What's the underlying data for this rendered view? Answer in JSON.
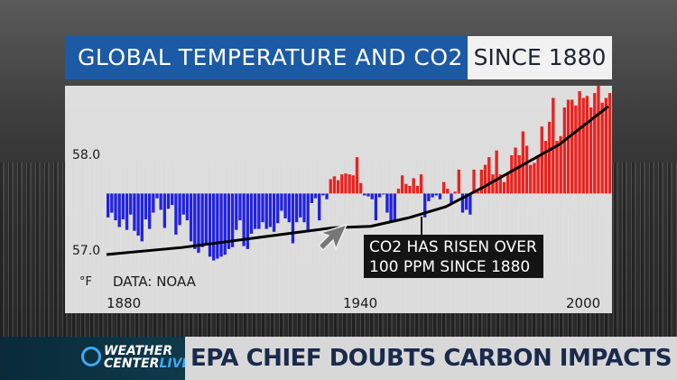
{
  "header": {
    "title": "GLOBAL TEMPERATURE AND CO2",
    "since": "SINCE 1880"
  },
  "ticker": {
    "logo_line1": "WEATHER",
    "logo_line2": "CENTER",
    "logo_live": "LIVE",
    "headline": "EPA CHIEF DOUBTS CARBON IMPACTS"
  },
  "colors": {
    "title_bar": "#1c5aa5",
    "warm": "#e8231f",
    "cool": "#2222dd",
    "co2_line": "#000000",
    "headline_text": "#1a2a4c"
  },
  "chart_data": {
    "type": "bar",
    "unit_label": "°F",
    "source_label": "DATA: NOAA",
    "y_ticks": [
      "58.0",
      "57.0"
    ],
    "x_ticks": [
      "1880",
      "1940",
      "2000"
    ],
    "ylim": [
      56.95,
      58.7
    ],
    "baseline_f": 57.6,
    "x_start_year": 1880,
    "x_end_year": 2013,
    "temperature_anomaly_f": [
      -0.25,
      -0.2,
      -0.28,
      -0.35,
      -0.27,
      -0.38,
      -0.22,
      -0.39,
      -0.44,
      -0.5,
      -0.27,
      -0.37,
      -0.2,
      -0.05,
      -0.17,
      -0.36,
      -0.16,
      -0.12,
      -0.43,
      -0.33,
      -0.22,
      -0.28,
      -0.5,
      -0.58,
      -0.62,
      -0.56,
      -0.52,
      -0.66,
      -0.7,
      -0.68,
      -0.66,
      -0.64,
      -0.58,
      -0.56,
      -0.38,
      -0.28,
      -0.55,
      -0.58,
      -0.42,
      -0.37,
      -0.37,
      -0.3,
      -0.37,
      -0.35,
      -0.4,
      -0.31,
      -0.18,
      -0.26,
      -0.3,
      -0.52,
      -0.3,
      -0.25,
      -0.3,
      -0.38,
      -0.1,
      -0.05,
      -0.28,
      -0.02,
      -0.06,
      0.15,
      0.18,
      0.14,
      0.2,
      0.21,
      0.2,
      0.19,
      0.38,
      0.11,
      -0.02,
      -0.03,
      -0.06,
      -0.28,
      -0.04,
      -0.01,
      -0.2,
      -0.3,
      -0.3,
      0.05,
      0.19,
      0.1,
      0.08,
      0.16,
      0.08,
      0.2,
      -0.25,
      -0.08,
      -0.04,
      -0.02,
      -0.06,
      0.12,
      0.05,
      -0.1,
      0.02,
      0.25,
      -0.2,
      -0.17,
      -0.22,
      0.25,
      0.02,
      0.25,
      0.3,
      0.38,
      0.2,
      0.45,
      0.2,
      0.12,
      0.2,
      0.4,
      0.48,
      0.4,
      0.65,
      0.5,
      0.3,
      0.32,
      0.4,
      0.7,
      0.55,
      0.75,
      1.0,
      0.55,
      0.6,
      0.9,
      0.98,
      0.98,
      0.92,
      1.07,
      1.0,
      1.02,
      0.9,
      1.05,
      1.13,
      0.95,
      1.0,
      1.05
    ],
    "co2_series": {
      "years": [
        1880,
        1900,
        1920,
        1940,
        1950,
        1960,
        1970,
        1980,
        1990,
        2000,
        2013
      ],
      "ppm": [
        291,
        296,
        303,
        310,
        311,
        317,
        325,
        339,
        354,
        369,
        396
      ]
    },
    "annotation": {
      "line1": "CO2 HAS RISEN OVER",
      "line2": "100 PPM SINCE 1880"
    }
  }
}
